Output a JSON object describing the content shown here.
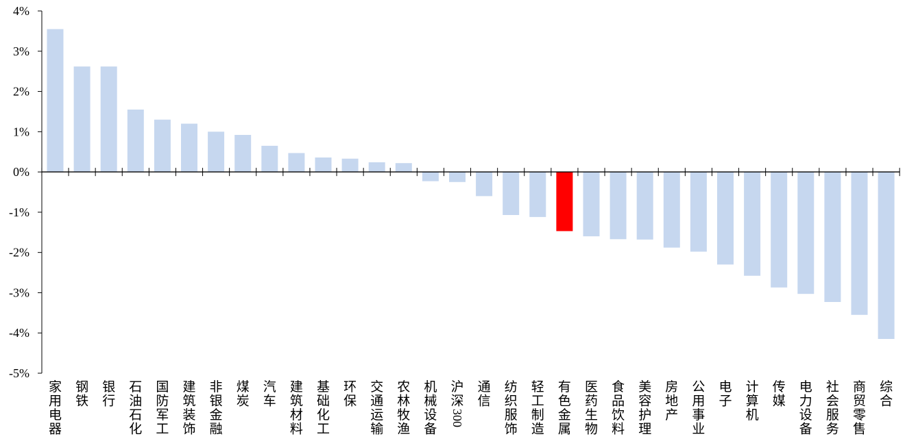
{
  "chart_data": {
    "type": "bar",
    "unit": "%",
    "ylim": [
      -5,
      4
    ],
    "yticks": [
      "-5%",
      "-4%",
      "-3%",
      "-2%",
      "-1%",
      "0%",
      "1%",
      "2%",
      "3%",
      "4%"
    ],
    "grid": false,
    "legend": "none",
    "colors": {
      "default": "#c6d7ef",
      "highlight": "#ff0000"
    },
    "highlight": "有色金属",
    "categories": [
      "家用电器",
      "钢铁",
      "银行",
      "石油石化",
      "国防军工",
      "建筑装饰",
      "非银金融",
      "煤炭",
      "汽车",
      "建筑材料",
      "基础化工",
      "环保",
      "交通运输",
      "农林牧渔",
      "机械设备",
      "沪深300",
      "通信",
      "纺织服饰",
      "轻工制造",
      "有色金属",
      "医药生物",
      "食品饮料",
      "美容护理",
      "房地产",
      "公用事业",
      "电子",
      "计算机",
      "传媒",
      "电力设备",
      "社会服务",
      "商贸零售",
      "综合"
    ],
    "values": [
      3.55,
      2.62,
      2.62,
      1.55,
      1.3,
      1.2,
      1.0,
      0.92,
      0.65,
      0.47,
      0.36,
      0.33,
      0.24,
      0.22,
      -0.23,
      -0.25,
      -0.6,
      -1.07,
      -1.12,
      -1.47,
      -1.6,
      -1.67,
      -1.68,
      -1.88,
      -1.98,
      -2.3,
      -2.58,
      -2.87,
      -3.03,
      -3.23,
      -3.55,
      -4.15
    ]
  }
}
